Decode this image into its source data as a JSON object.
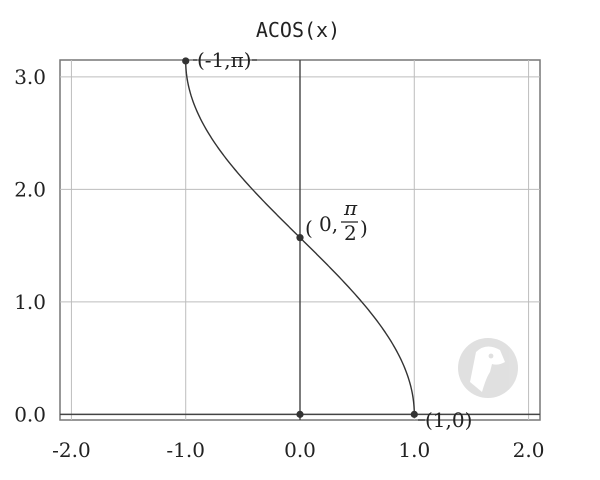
{
  "chart_data": {
    "type": "line",
    "title": "ACOS(x)",
    "xlabel": "",
    "ylabel": "",
    "xlim": [
      -2.1,
      2.1
    ],
    "ylim": [
      -0.05,
      3.15
    ],
    "x_ticks": [
      -2.0,
      -1.0,
      0.0,
      1.0,
      2.0
    ],
    "x_tick_labels": [
      "-2.0",
      "-1.0",
      "0.0",
      "1.0",
      "2.0"
    ],
    "y_ticks": [
      0.0,
      1.0,
      2.0,
      3.0
    ],
    "y_tick_labels": [
      "0.0",
      "1.0",
      "2.0",
      "3.0"
    ],
    "grid": true,
    "series": [
      {
        "x": [
          -1.0,
          -0.95,
          -0.9,
          -0.8,
          -0.7,
          -0.6,
          -0.5,
          -0.4,
          -0.3,
          -0.2,
          -0.1,
          0.0,
          0.1,
          0.2,
          0.3,
          0.4,
          0.5,
          0.6,
          0.7,
          0.8,
          0.9,
          0.95,
          1.0
        ],
        "y": [
          3.1416,
          2.824,
          2.6906,
          2.4981,
          2.3462,
          2.2143,
          2.0944,
          1.9823,
          1.8755,
          1.7722,
          1.671,
          1.5708,
          1.4706,
          1.3694,
          1.2661,
          1.1593,
          1.0472,
          0.9273,
          0.7954,
          0.6435,
          0.451,
          0.3176,
          0.0
        ],
        "color": "#333333"
      }
    ],
    "points": [
      {
        "x": -1.0,
        "y": 3.1416
      },
      {
        "x": 0.0,
        "y": 1.5708
      },
      {
        "x": 1.0,
        "y": 0.0
      },
      {
        "x": 0.0,
        "y": 0.0
      }
    ],
    "annotations": {
      "p1": "(-1,π)",
      "p2_open": "(",
      "p2_zero": "0,",
      "p2_num": "π",
      "p2_den": "2",
      "p2_close": ")",
      "p3": "(1,0)"
    },
    "watermark_icon": "dino-logo-icon"
  }
}
